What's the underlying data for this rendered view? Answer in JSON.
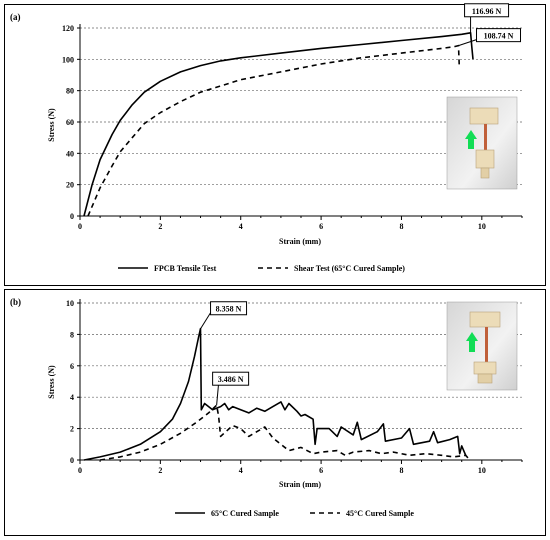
{
  "chart_data": [
    {
      "panel_label": "(a)",
      "type": "line",
      "xlabel": "Strain (mm)",
      "ylabel": "Stress (N)",
      "xlim": [
        0,
        11
      ],
      "ylim": [
        0,
        120
      ],
      "xticks": [
        0,
        2,
        4,
        6,
        8,
        10
      ],
      "yticks": [
        0,
        20,
        40,
        60,
        80,
        100,
        120
      ],
      "grid": "horizontal-dashed",
      "legend_position": "bottom",
      "series": [
        {
          "name": "FPCB Tensile Test",
          "style": "solid",
          "x": [
            0.1,
            0.3,
            0.5,
            0.8,
            1.0,
            1.3,
            1.6,
            2.0,
            2.5,
            3.0,
            3.5,
            4.0,
            5.0,
            6.0,
            7.0,
            8.0,
            9.0,
            9.5,
            9.72,
            9.75,
            9.78
          ],
          "y": [
            0,
            20,
            36,
            52,
            61,
            71,
            79,
            86,
            92,
            96,
            99,
            101,
            104,
            107,
            109.5,
            112,
            114.5,
            116,
            116.96,
            108,
            100
          ]
        },
        {
          "name": "Shear Test (65°C Cured Sample)",
          "style": "dashed",
          "x": [
            0.2,
            0.5,
            0.8,
            1.0,
            1.3,
            1.6,
            2.0,
            2.5,
            3.0,
            3.5,
            4.0,
            5.0,
            6.0,
            7.0,
            8.0,
            9.0,
            9.3,
            9.42,
            9.44
          ],
          "y": [
            0,
            18,
            32,
            41,
            50,
            59,
            66,
            73,
            79,
            83,
            87,
            92,
            97,
            101,
            104,
            107,
            108,
            108.74,
            95
          ]
        }
      ],
      "annotations": [
        {
          "text": "116.96 N",
          "x": 9.72,
          "y": 116.96
        },
        {
          "text": "108.74 N",
          "x": 9.42,
          "y": 108.74
        }
      ]
    },
    {
      "panel_label": "(b)",
      "type": "line",
      "xlabel": "Strain (mm)",
      "ylabel": "Stress (N)",
      "xlim": [
        0,
        11
      ],
      "ylim": [
        0,
        10
      ],
      "xticks": [
        0,
        2,
        4,
        6,
        8,
        10
      ],
      "yticks": [
        0,
        2,
        4,
        6,
        8,
        10
      ],
      "grid": "horizontal-dashed",
      "legend_position": "bottom",
      "series": [
        {
          "name": "65°C Cured Sample",
          "style": "solid",
          "x": [
            0.1,
            0.5,
            1.0,
            1.5,
            2.0,
            2.3,
            2.5,
            2.7,
            2.85,
            2.95,
            3.0,
            3.02,
            3.1,
            3.3,
            3.5,
            3.6,
            3.7,
            3.8,
            4.0,
            4.2,
            4.4,
            4.6,
            4.8,
            5.0,
            5.1,
            5.2,
            5.4,
            5.5,
            5.6,
            5.8,
            5.85,
            5.9,
            6.2,
            6.4,
            6.5,
            6.8,
            6.9,
            7.0,
            7.4,
            7.55,
            7.6,
            8.0,
            8.2,
            8.3,
            8.7,
            8.8,
            8.9,
            9.2,
            9.4,
            9.45,
            9.5,
            9.6
          ],
          "y": [
            0,
            0.2,
            0.5,
            1.0,
            1.8,
            2.6,
            3.6,
            5.0,
            6.6,
            7.8,
            8.36,
            3.2,
            3.6,
            3.2,
            3.4,
            3.6,
            3.2,
            3.4,
            3.2,
            3.0,
            3.3,
            3.1,
            3.4,
            3.7,
            3.2,
            3.6,
            3.1,
            2.8,
            2.9,
            2.6,
            1.0,
            2.0,
            2.0,
            1.5,
            2.1,
            1.6,
            2.4,
            1.3,
            1.8,
            2.3,
            1.2,
            1.4,
            2.0,
            1.0,
            1.2,
            1.8,
            1.1,
            1.3,
            1.5,
            0.4,
            0.9,
            0.3
          ]
        },
        {
          "name": "45°C Cured Sample",
          "style": "dashed",
          "x": [
            0.5,
            1.0,
            1.5,
            2.0,
            2.5,
            2.9,
            3.2,
            3.4,
            3.45,
            3.5,
            3.8,
            4.0,
            4.2,
            4.4,
            4.6,
            4.8,
            5.0,
            5.2,
            5.5,
            5.8,
            6.0,
            6.4,
            6.6,
            6.8,
            7.2,
            7.5,
            7.8,
            8.2,
            8.6,
            9.0,
            9.3,
            9.6,
            9.7
          ],
          "y": [
            0,
            0.2,
            0.5,
            1.0,
            1.7,
            2.4,
            3.0,
            3.49,
            2.8,
            1.5,
            2.2,
            2.0,
            1.5,
            1.8,
            2.1,
            1.4,
            1.0,
            0.6,
            0.8,
            0.4,
            0.5,
            0.6,
            0.3,
            0.5,
            0.6,
            0.4,
            0.5,
            0.3,
            0.4,
            0.3,
            0.2,
            0.3,
            0
          ]
        }
      ],
      "annotations": [
        {
          "text": "8.358 N",
          "x": 3.0,
          "y": 8.36
        },
        {
          "text": "3.486 N",
          "x": 3.4,
          "y": 3.49
        }
      ]
    }
  ]
}
